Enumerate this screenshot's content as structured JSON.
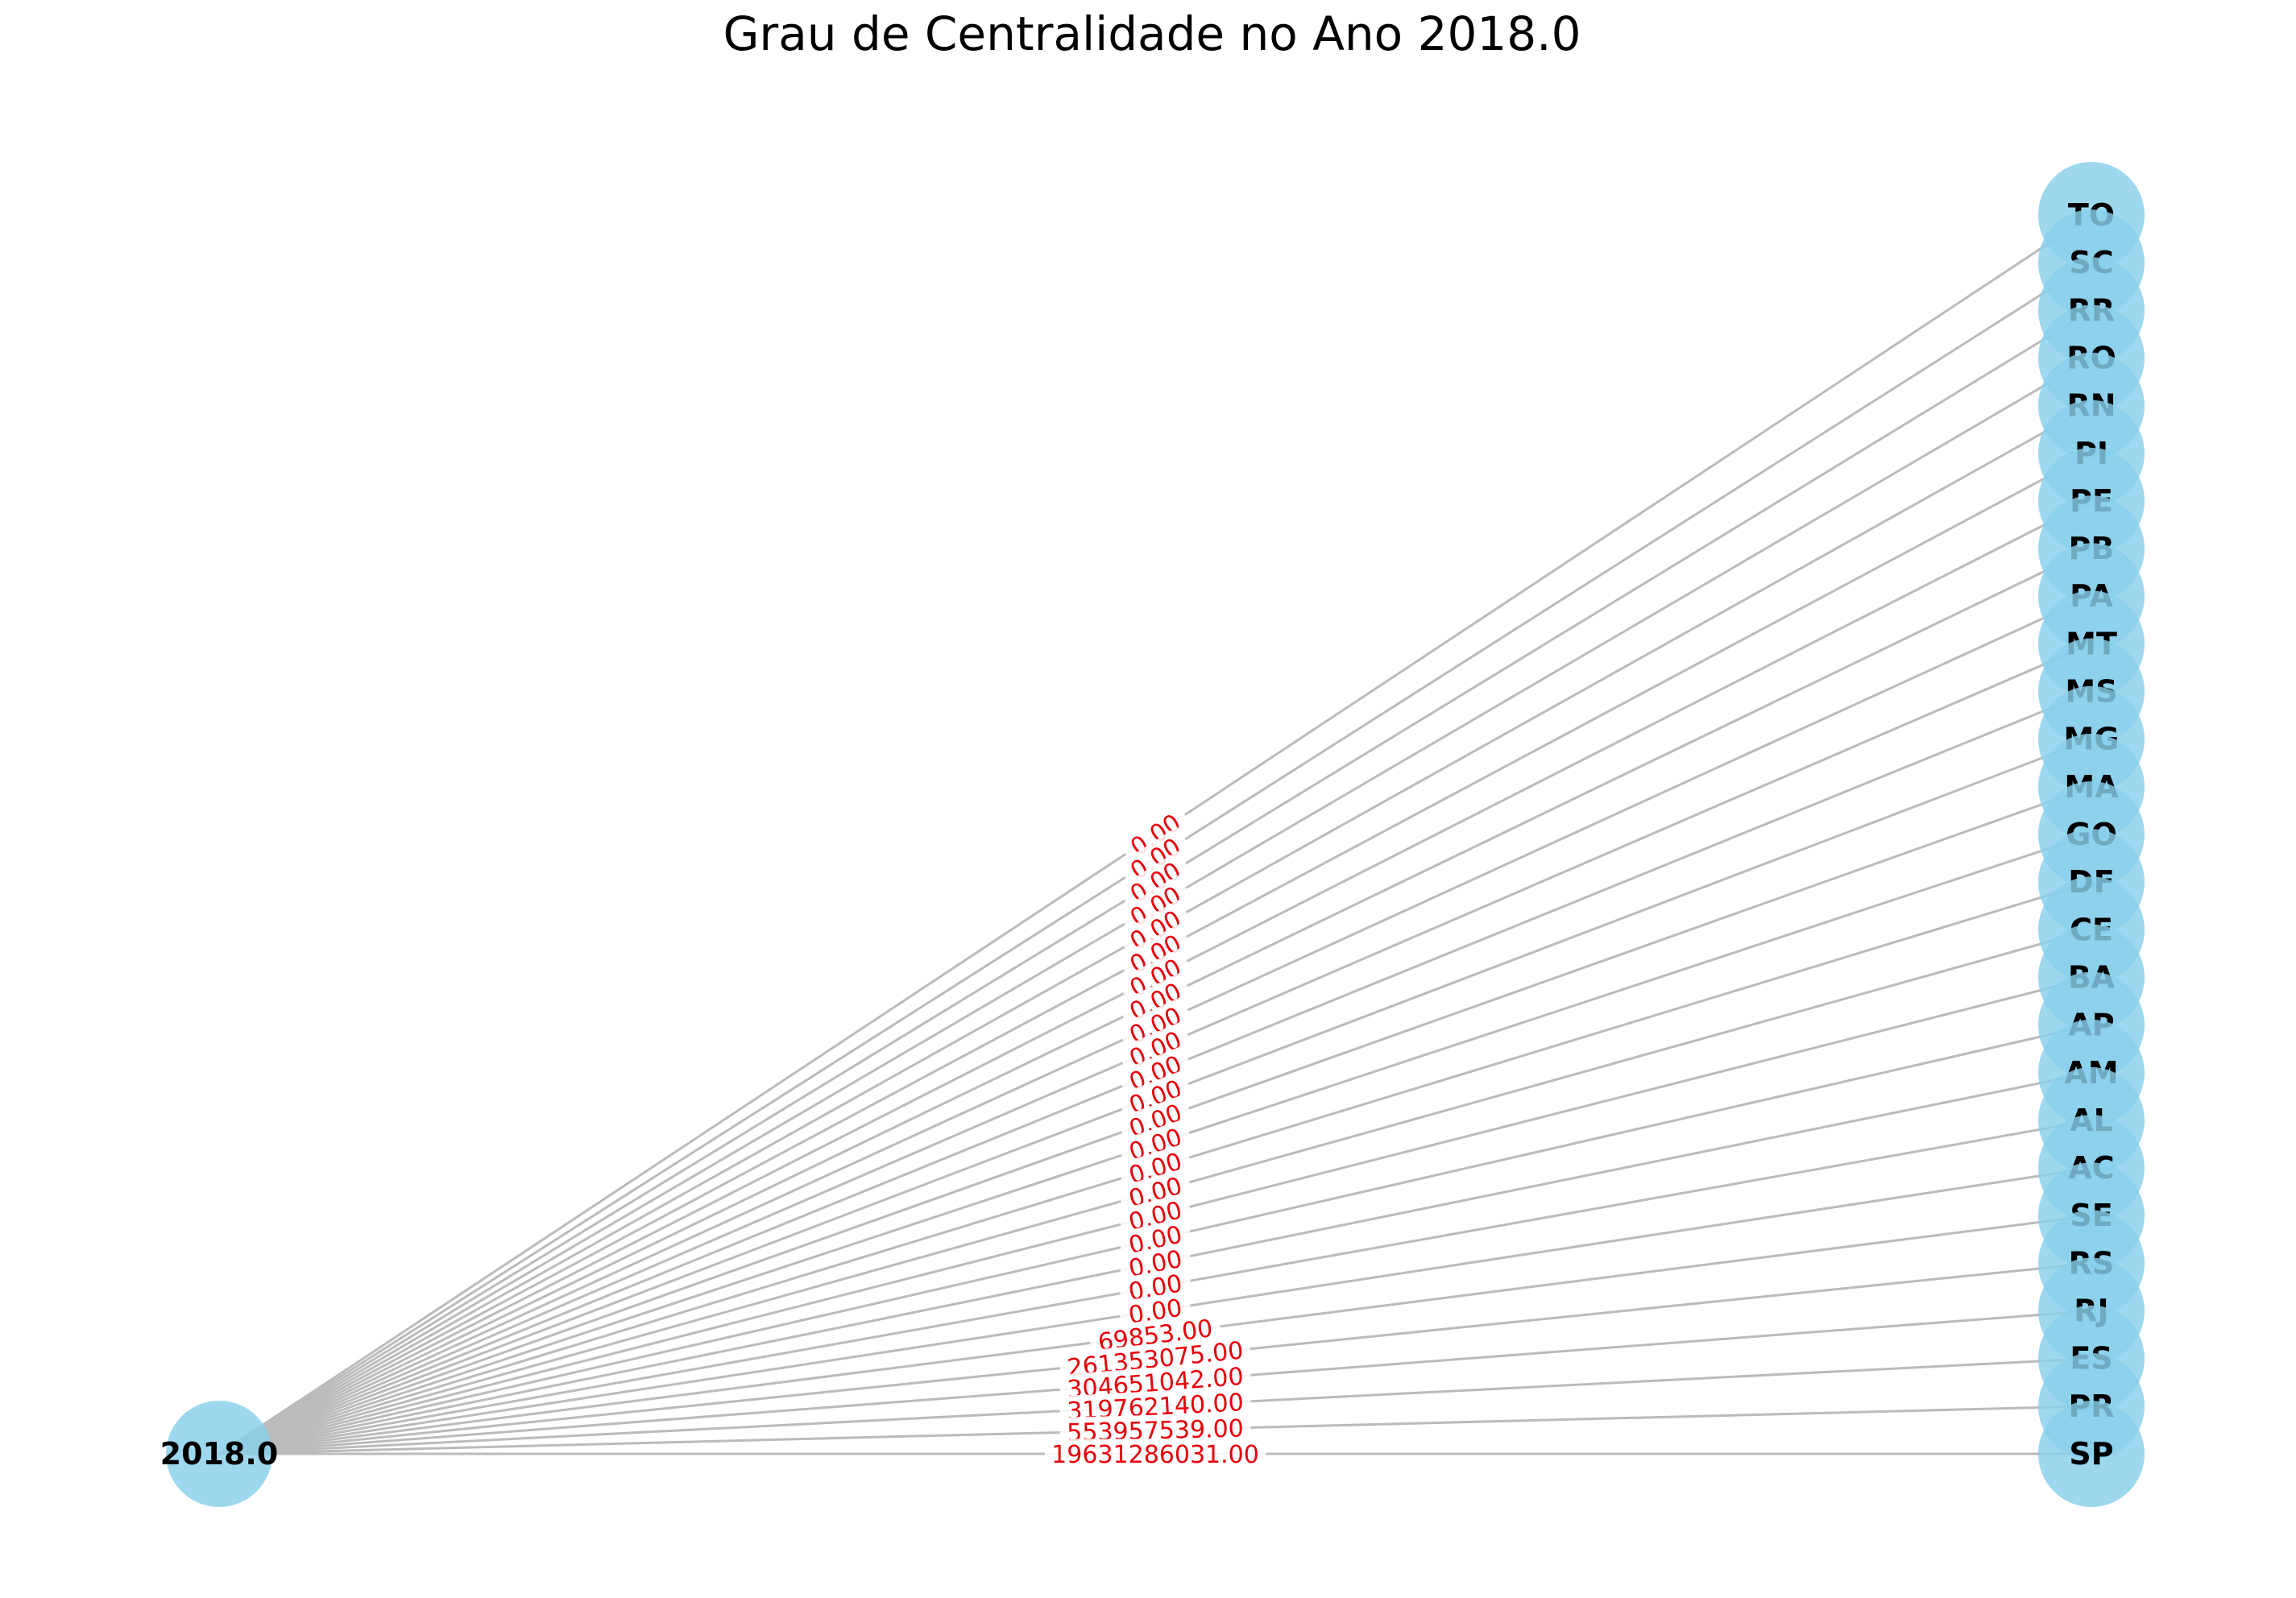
{
  "title": "Grau de Centralidade no Ano 2018.0",
  "colors": {
    "node_fill": "#89CFEB",
    "edge": "#BBBBBB",
    "edge_label": "#E8000B",
    "label_bg": "#FFFFFF",
    "text": "#000000"
  },
  "center_node": {
    "label": "2018.0"
  },
  "nodes": [
    {
      "label": "TO",
      "weight": "0.00"
    },
    {
      "label": "SC",
      "weight": "0.00"
    },
    {
      "label": "RR",
      "weight": "0.00"
    },
    {
      "label": "RO",
      "weight": "0.00"
    },
    {
      "label": "RN",
      "weight": "0.00"
    },
    {
      "label": "PI",
      "weight": "0.00"
    },
    {
      "label": "PE",
      "weight": "0.00"
    },
    {
      "label": "PB",
      "weight": "0.00"
    },
    {
      "label": "PA",
      "weight": "0.00"
    },
    {
      "label": "MT",
      "weight": "0.00"
    },
    {
      "label": "MS",
      "weight": "0.00"
    },
    {
      "label": "MG",
      "weight": "0.00"
    },
    {
      "label": "MA",
      "weight": "0.00"
    },
    {
      "label": "GO",
      "weight": "0.00"
    },
    {
      "label": "DF",
      "weight": "0.00"
    },
    {
      "label": "CE",
      "weight": "0.00"
    },
    {
      "label": "BA",
      "weight": "0.00"
    },
    {
      "label": "AP",
      "weight": "0.00"
    },
    {
      "label": "AM",
      "weight": "0.00"
    },
    {
      "label": "AL",
      "weight": "0.00"
    },
    {
      "label": "AC",
      "weight": "0.00"
    },
    {
      "label": "SE",
      "weight": "69853.00"
    },
    {
      "label": "RS",
      "weight": "261353075.00"
    },
    {
      "label": "RJ",
      "weight": "304651042.00"
    },
    {
      "label": "ES",
      "weight": "319762140.00"
    },
    {
      "label": "PR",
      "weight": "553957539.00"
    },
    {
      "label": "SP",
      "weight": "19631286031.00"
    }
  ]
}
